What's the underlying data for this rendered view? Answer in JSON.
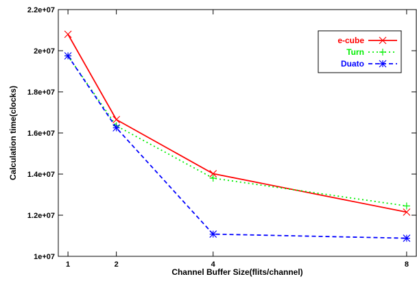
{
  "chart_data": {
    "type": "line",
    "xlabel": "Channel Buffer Size(flits/channel)",
    "ylabel": "Calculation time(clocks)",
    "x": [
      1,
      2,
      4,
      8
    ],
    "xticks": [
      "1",
      "2",
      "4",
      "8"
    ],
    "xlim": [
      0.8,
      8.2
    ],
    "ylim": [
      10000000,
      22000000
    ],
    "yticks": [
      {
        "value": 10000000,
        "label": "1e+07"
      },
      {
        "value": 12000000,
        "label": "1.2e+07"
      },
      {
        "value": 14000000,
        "label": "1.4e+07"
      },
      {
        "value": 16000000,
        "label": "1.6e+07"
      },
      {
        "value": 18000000,
        "label": "1.8e+07"
      },
      {
        "value": 20000000,
        "label": "2e+07"
      },
      {
        "value": 22000000,
        "label": "2.2e+07"
      }
    ],
    "grid": false,
    "legend_position": "top-right",
    "series": [
      {
        "name": "e-cube",
        "color": "#ff0000",
        "dash": "solid",
        "marker": "x",
        "values": [
          20800000,
          16650000,
          14020000,
          12150000
        ]
      },
      {
        "name": "Turn",
        "color": "#00ee00",
        "dash": "dotted",
        "marker": "plus",
        "values": [
          19750000,
          16350000,
          13800000,
          12450000
        ]
      },
      {
        "name": "Duato",
        "color": "#0000ff",
        "dash": "dashed",
        "marker": "star",
        "values": [
          19750000,
          16250000,
          11080000,
          10880000
        ]
      }
    ]
  }
}
